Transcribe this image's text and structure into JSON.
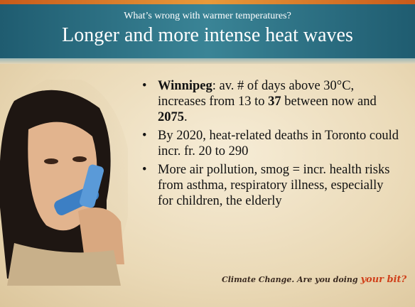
{
  "header": {
    "subtitle": "What’s wrong with warmer temperatures?",
    "title": "Longer and more intense heat waves"
  },
  "bullets": [
    {
      "runs": [
        {
          "text": "Winnipeg",
          "bold": true
        },
        {
          "text": ": av. # of days above 30°C, increases from 13 to ",
          "bold": false
        },
        {
          "text": "37",
          "bold": true
        },
        {
          "text": " between now and ",
          "bold": false
        },
        {
          "text": "2075",
          "bold": true
        },
        {
          "text": ".",
          "bold": false
        }
      ]
    },
    {
      "runs": [
        {
          "text": "By 2020, heat-related deaths in Toronto could incr. fr. 20 to 290",
          "bold": false
        }
      ]
    },
    {
      "runs": [
        {
          "text": "More air pollution, smog = incr. health risks from asthma, respiratory illness, especially for children, the elderly",
          "bold": false
        }
      ]
    }
  ],
  "footer": {
    "lead": "Climate Change. Are you doing ",
    "accent": "your bit?"
  }
}
